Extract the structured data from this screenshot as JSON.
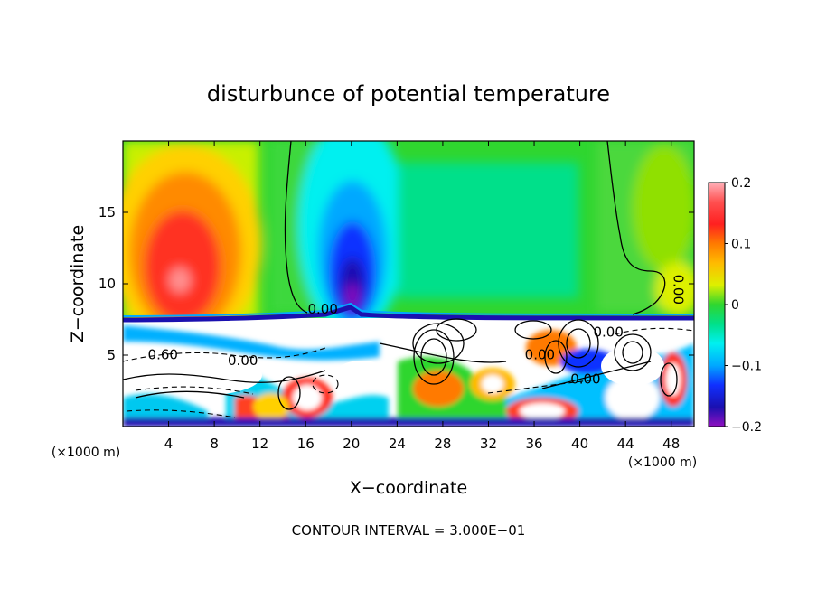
{
  "chart_data": {
    "type": "heatmap",
    "title": "disturbunce of potential temperature",
    "xlabel": "X−coordinate",
    "ylabel": "Z−coordinate",
    "x_unit": "(×1000 m)",
    "y_unit": "(×1000 m)",
    "xlim": [
      0,
      50
    ],
    "ylim": [
      0,
      20
    ],
    "x_ticks": [
      4,
      8,
      12,
      16,
      20,
      24,
      28,
      32,
      36,
      40,
      44,
      48
    ],
    "y_ticks": [
      5,
      10,
      15
    ],
    "colorbar": {
      "range": [
        -0.2,
        0.2
      ],
      "tick_labels": [
        "0.2",
        "0.1",
        "0",
        "−0.1",
        "−0.2"
      ],
      "tick_values": [
        0.2,
        0.1,
        0,
        -0.1,
        -0.2
      ]
    },
    "contour_labels": [
      {
        "text": "0.00",
        "x": 17.5,
        "z": 7.9
      },
      {
        "text": "0.60",
        "x": 3.5,
        "z": 4.7
      },
      {
        "text": "0.00",
        "x": 10.5,
        "z": 4.3
      },
      {
        "text": "0.00",
        "x": 48.2,
        "z": 9.6
      },
      {
        "text": "0.00",
        "x": 42.5,
        "z": 6.3
      },
      {
        "text": "0.00",
        "x": 36.5,
        "z": 4.7
      },
      {
        "text": "0.00",
        "x": 40.5,
        "z": 3.0
      }
    ],
    "footer": "CONTOUR INTERVAL = 3.000E−01"
  }
}
